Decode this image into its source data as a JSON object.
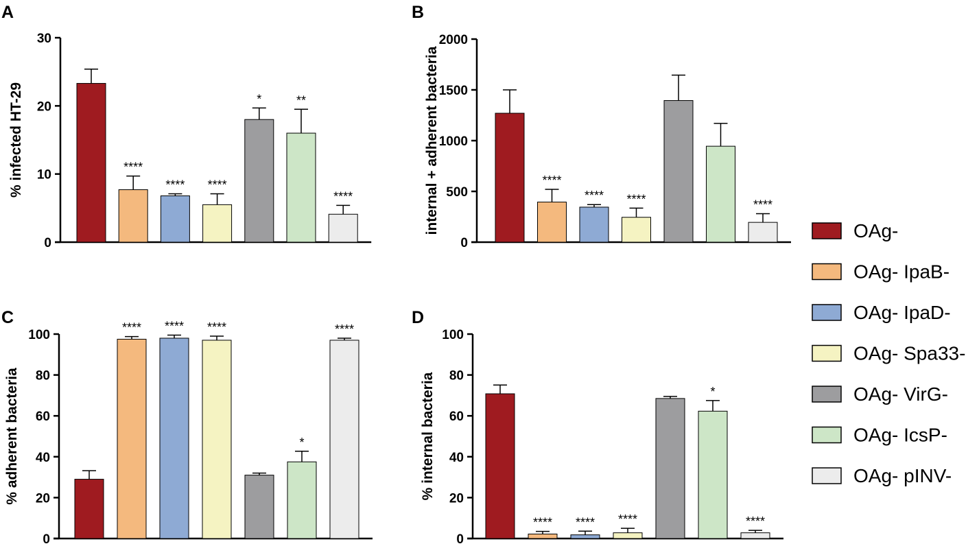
{
  "chart_data": [
    {
      "panel": "A",
      "type": "bar",
      "title": "",
      "xlabel": "",
      "ylabel": "% infected HT-29",
      "ylim": [
        0,
        30
      ],
      "yticks": [
        "0",
        "10",
        "20",
        "30"
      ],
      "categories": [
        "OAg-",
        "OAg- IpaB-",
        "OAg- IpaD-",
        "OAg- Spa33-",
        "OAg- VirG-",
        "OAg- IcsP-",
        "OAg- pINV-"
      ],
      "values": [
        23.3,
        7.7,
        6.8,
        5.5,
        18.0,
        16.0,
        4.1
      ],
      "errors": [
        2.1,
        2.0,
        0.3,
        1.6,
        1.7,
        3.5,
        1.3
      ],
      "significance": [
        "",
        "****",
        "****",
        "****",
        "*",
        "**",
        "****"
      ]
    },
    {
      "panel": "B",
      "type": "bar",
      "title": "",
      "xlabel": "",
      "ylabel": "internal + adherent bacteria",
      "ylim": [
        0,
        2000
      ],
      "yticks": [
        "0",
        "500",
        "1000",
        "1500",
        "2000"
      ],
      "categories": [
        "OAg-",
        "OAg- IpaB-",
        "OAg- IpaD-",
        "OAg- Spa33-",
        "OAg- VirG-",
        "OAg- IcsP-",
        "OAg- pINV-"
      ],
      "values": [
        1270,
        395,
        345,
        245,
        1395,
        945,
        195
      ],
      "errors": [
        230,
        125,
        25,
        90,
        250,
        225,
        85
      ],
      "significance": [
        "",
        "****",
        "****",
        "****",
        "",
        "",
        "****"
      ]
    },
    {
      "panel": "C",
      "type": "bar",
      "title": "",
      "xlabel": "",
      "ylabel": "% adherent bacteria",
      "ylim": [
        0,
        100
      ],
      "yticks": [
        "0",
        "20",
        "40",
        "60",
        "80",
        "100"
      ],
      "categories": [
        "OAg-",
        "OAg- IpaB-",
        "OAg- IpaD-",
        "OAg- Spa33-",
        "OAg- VirG-",
        "OAg- IcsP-",
        "OAg- pINV-"
      ],
      "values": [
        29,
        97.5,
        98,
        97,
        31,
        37.5,
        97
      ],
      "errors": [
        4.2,
        1.3,
        1.5,
        2.0,
        1.0,
        5.2,
        1.0
      ],
      "significance": [
        "",
        "****",
        "****",
        "****",
        "",
        "*",
        "****"
      ]
    },
    {
      "panel": "D",
      "type": "bar",
      "title": "",
      "xlabel": "",
      "ylabel": "% internal bacteria",
      "ylim": [
        0,
        100
      ],
      "yticks": [
        "0",
        "20",
        "40",
        "60",
        "80",
        "100"
      ],
      "categories": [
        "OAg-",
        "OAg- IpaB-",
        "OAg- IpaD-",
        "OAg- Spa33-",
        "OAg- VirG-",
        "OAg- IcsP-",
        "OAg- pINV-"
      ],
      "values": [
        70.8,
        2.2,
        1.8,
        2.8,
        68.5,
        62.3,
        2.8
      ],
      "errors": [
        4.3,
        1.3,
        1.8,
        2.2,
        1.0,
        5.2,
        1.2
      ],
      "significance": [
        "",
        "****",
        "****",
        "****",
        "",
        "*",
        "****"
      ]
    }
  ],
  "legend": {
    "position": "right",
    "entries": [
      {
        "label": "OAg-",
        "color": "#9f1b20"
      },
      {
        "label": "OAg- IpaB-",
        "color": "#f4b97e"
      },
      {
        "label": "OAg- IpaD-",
        "color": "#8eaad4"
      },
      {
        "label": "OAg- Spa33-",
        "color": "#f5f3c2"
      },
      {
        "label": "OAg- VirG-",
        "color": "#9d9d9f"
      },
      {
        "label": "OAg- IcsP-",
        "color": "#cde6c7"
      },
      {
        "label": "OAg- pINV-",
        "color": "#ececec"
      }
    ]
  }
}
